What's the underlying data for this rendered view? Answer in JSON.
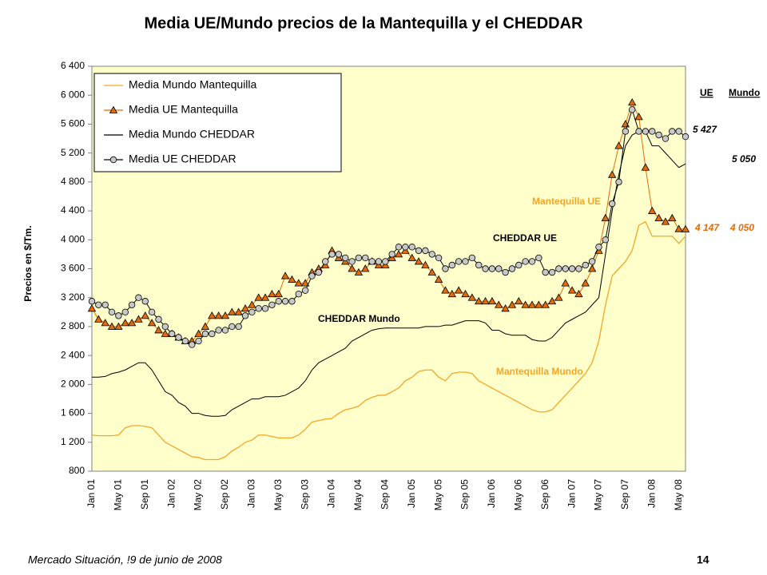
{
  "chart_data": {
    "type": "line",
    "title": "Media UE/Mundo precios de la Mantequilla y el CHEDDAR",
    "y_label": "Precios en $/Tm.",
    "footer": "Mercado Situación, !9 de junio de 2008",
    "page_number": "14",
    "legend_position": "upper left",
    "categories": [
      "Jan 01",
      null,
      null,
      null,
      "May 01",
      null,
      null,
      null,
      "Sep 01",
      null,
      null,
      null,
      "Jan 02",
      null,
      null,
      null,
      "May 02",
      null,
      null,
      null,
      "Sep 02",
      null,
      null,
      null,
      "Jan 03",
      null,
      null,
      null,
      "May 03",
      null,
      null,
      null,
      "Sep 03",
      null,
      null,
      null,
      "Jan 04",
      null,
      null,
      null,
      "May 04",
      null,
      null,
      null,
      "Sep 04",
      null,
      null,
      null,
      "Jan 05",
      null,
      null,
      null,
      "May 05",
      null,
      null,
      null,
      "Sep 05",
      null,
      null,
      null,
      "Jan 06",
      null,
      null,
      null,
      "May 06",
      null,
      null,
      null,
      "Sep 06",
      null,
      null,
      null,
      "Jan 07",
      null,
      null,
      null,
      "May 07",
      null,
      null,
      null,
      "Sep 07",
      null,
      null,
      null,
      "Jan 08",
      null,
      null,
      null,
      "May 08",
      null
    ],
    "ylim": [
      800,
      6400
    ],
    "yticks": [
      {
        "value": 800,
        "label": "800"
      },
      {
        "value": 1200,
        "label": "1 200"
      },
      {
        "value": 1600,
        "label": "1 600"
      },
      {
        "value": 2000,
        "label": "2 000"
      },
      {
        "value": 2400,
        "label": "2 400"
      },
      {
        "value": 2800,
        "label": "2 800"
      },
      {
        "value": 3200,
        "label": "3 200"
      },
      {
        "value": 3600,
        "label": "3 600"
      },
      {
        "value": 4000,
        "label": "4 000"
      },
      {
        "value": 4400,
        "label": "4 400"
      },
      {
        "value": 4800,
        "label": "4 800"
      },
      {
        "value": 5200,
        "label": "5 200"
      },
      {
        "value": 5600,
        "label": "5 600"
      },
      {
        "value": 6000,
        "label": "6 000"
      },
      {
        "value": 6400,
        "label": "6 400"
      }
    ],
    "series": [
      {
        "name": "Media Mundo Mantequilla",
        "color": "#F5A623",
        "marker": "none",
        "values": [
          1300,
          1290,
          1290,
          1290,
          1300,
          1400,
          1430,
          1430,
          1420,
          1400,
          1300,
          1200,
          1150,
          1100,
          1050,
          1000,
          990,
          960,
          960,
          960,
          1000,
          1080,
          1130,
          1200,
          1230,
          1300,
          1300,
          1280,
          1260,
          1260,
          1260,
          1300,
          1380,
          1480,
          1500,
          1520,
          1530,
          1600,
          1650,
          1670,
          1700,
          1780,
          1820,
          1850,
          1850,
          1900,
          1950,
          2050,
          2100,
          2180,
          2200,
          2200,
          2100,
          2050,
          2150,
          2170,
          2170,
          2150,
          2050,
          2000,
          1950,
          1900,
          1850,
          1800,
          1750,
          1700,
          1650,
          1620,
          1620,
          1650,
          1750,
          1850,
          1950,
          2050,
          2150,
          2300,
          2600,
          3100,
          3500,
          3600,
          3700,
          3850,
          4200,
          4250,
          4050,
          4050,
          4050,
          4050,
          3950,
          4050
        ]
      },
      {
        "name": "Media UE Mantequilla",
        "color": "#E36C09",
        "marker": "triangle",
        "values": [
          3050,
          2900,
          2850,
          2800,
          2800,
          2850,
          2850,
          2900,
          2950,
          2850,
          2750,
          2700,
          2700,
          2650,
          2600,
          2600,
          2700,
          2800,
          2950,
          2950,
          2950,
          3000,
          3000,
          3050,
          3100,
          3200,
          3200,
          3250,
          3250,
          3500,
          3450,
          3400,
          3400,
          3550,
          3600,
          3650,
          3850,
          3750,
          3700,
          3600,
          3550,
          3600,
          3700,
          3650,
          3650,
          3750,
          3800,
          3850,
          3750,
          3700,
          3650,
          3550,
          3450,
          3300,
          3250,
          3300,
          3250,
          3200,
          3150,
          3150,
          3150,
          3100,
          3050,
          3100,
          3150,
          3100,
          3100,
          3100,
          3100,
          3150,
          3200,
          3400,
          3300,
          3250,
          3400,
          3600,
          3850,
          4300,
          4900,
          5300,
          5600,
          5900,
          5700,
          5000,
          4400,
          4300,
          4250,
          4300,
          4150,
          4147
        ]
      },
      {
        "name": "Media Mundo CHEDDAR",
        "color": "#000000",
        "marker": "none",
        "values": [
          2100,
          2100,
          2110,
          2150,
          2170,
          2200,
          2250,
          2300,
          2300,
          2200,
          2050,
          1900,
          1850,
          1750,
          1700,
          1600,
          1600,
          1570,
          1560,
          1560,
          1570,
          1650,
          1700,
          1750,
          1800,
          1800,
          1830,
          1830,
          1830,
          1850,
          1900,
          1950,
          2050,
          2200,
          2300,
          2350,
          2400,
          2450,
          2500,
          2600,
          2650,
          2700,
          2750,
          2770,
          2780,
          2780,
          2780,
          2780,
          2780,
          2780,
          2800,
          2800,
          2800,
          2820,
          2820,
          2850,
          2880,
          2880,
          2880,
          2850,
          2750,
          2750,
          2700,
          2680,
          2680,
          2680,
          2620,
          2600,
          2600,
          2650,
          2750,
          2850,
          2900,
          2950,
          3000,
          3100,
          3200,
          3800,
          4400,
          4900,
          5300,
          5450,
          5500,
          5500,
          5300,
          5300,
          5200,
          5100,
          5000,
          5050
        ]
      },
      {
        "name": "Media UE CHEDDAR",
        "color": "#000000",
        "marker": "circle",
        "values": [
          3150,
          3100,
          3100,
          3000,
          2950,
          3000,
          3100,
          3200,
          3150,
          3000,
          2900,
          2800,
          2700,
          2650,
          2600,
          2550,
          2600,
          2700,
          2700,
          2750,
          2750,
          2800,
          2800,
          2950,
          3000,
          3050,
          3050,
          3100,
          3150,
          3150,
          3150,
          3250,
          3300,
          3500,
          3550,
          3700,
          3800,
          3800,
          3750,
          3700,
          3750,
          3750,
          3700,
          3700,
          3700,
          3800,
          3900,
          3900,
          3900,
          3850,
          3850,
          3800,
          3750,
          3600,
          3650,
          3700,
          3700,
          3750,
          3650,
          3600,
          3600,
          3600,
          3550,
          3600,
          3650,
          3700,
          3700,
          3750,
          3550,
          3550,
          3600,
          3600,
          3600,
          3600,
          3650,
          3700,
          3900,
          4000,
          4500,
          4800,
          5500,
          5800,
          5500,
          5500,
          5500,
          5450,
          5400,
          5500,
          5500,
          5427
        ]
      }
    ],
    "annotations": [
      "UE",
      "Mundo",
      "5 427",
      "5 050",
      "4 147",
      "4 050",
      "Mantequilla UE",
      "CHEDDAR UE",
      "CHEDDAR Mundo",
      "Mantequilla Mundo"
    ]
  }
}
